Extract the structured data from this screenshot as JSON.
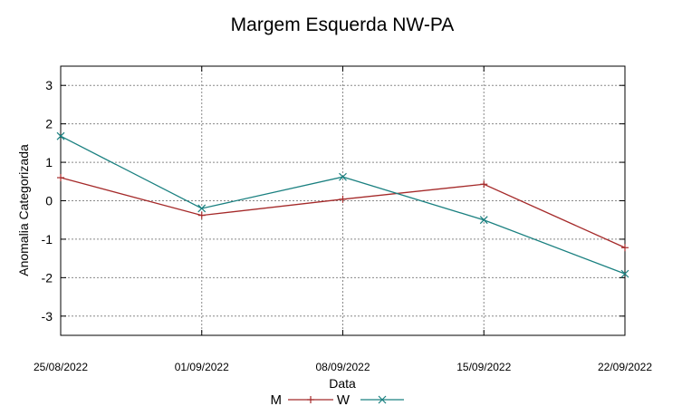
{
  "chart_data": {
    "type": "line",
    "title": "Margem Esquerda NW-PA",
    "xlabel": "Data",
    "ylabel": "Anomalia Categorizada",
    "categories": [
      "25/08/2022",
      "01/09/2022",
      "08/09/2022",
      "15/09/2022",
      "22/09/2022"
    ],
    "yticks": [
      "3",
      "2",
      "1",
      "0",
      "-1",
      "-2",
      "-3"
    ],
    "ylim": [
      -3.5,
      3.5
    ],
    "grid": true,
    "legend_position": "bottom",
    "series": [
      {
        "name": "M",
        "color": "#a52a2a",
        "marker": "plus",
        "values": [
          0.6,
          -0.38,
          0.04,
          0.43,
          -1.22
        ]
      },
      {
        "name": "W",
        "color": "#1a8080",
        "marker": "cross",
        "values": [
          1.68,
          -0.2,
          0.62,
          -0.5,
          -1.9
        ]
      }
    ]
  }
}
